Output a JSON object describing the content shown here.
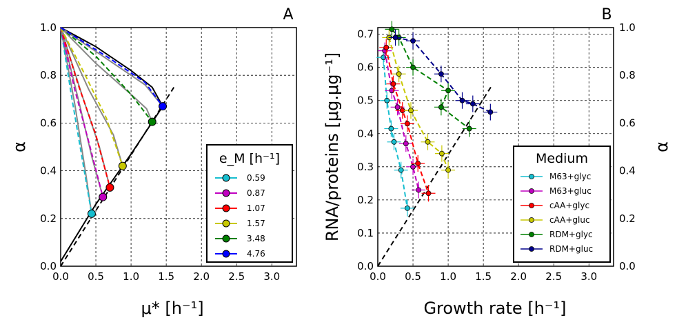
{
  "chart_data": [
    {
      "type": "line",
      "panel_label": "A",
      "xlabel": "μ* [h⁻¹]",
      "ylabel": "α",
      "xlim": [
        0,
        3.35
      ],
      "ylim": [
        0,
        1.0
      ],
      "xticks": [
        "0.0",
        "0.5",
        "1.0",
        "1.5",
        "2.0",
        "2.5",
        "3.0"
      ],
      "yticks": [
        "0.0",
        "0.2",
        "0.4",
        "0.6",
        "0.8",
        "1.0"
      ],
      "grid": true,
      "legend": {
        "title": "e_M [h⁻¹]",
        "placement": "bottom-right"
      },
      "series": [
        {
          "name": "0.59",
          "color": "#17becf",
          "point": [
            0.44,
            0.22
          ],
          "dashed": [
            [
              0,
              1.0
            ],
            [
              0.15,
              0.72
            ],
            [
              0.3,
              0.46
            ],
            [
              0.44,
              0.22
            ]
          ],
          "gray": [
            [
              0,
              1.0
            ],
            [
              0.2,
              0.68
            ],
            [
              0.35,
              0.4
            ],
            [
              0.44,
              0.22
            ]
          ]
        },
        {
          "name": "0.87",
          "color": "#c000c0",
          "point": [
            0.6,
            0.29
          ],
          "dashed": [
            [
              0,
              1.0
            ],
            [
              0.2,
              0.74
            ],
            [
              0.4,
              0.52
            ],
            [
              0.6,
              0.29
            ]
          ],
          "gray": [
            [
              0,
              1.0
            ],
            [
              0.25,
              0.7
            ],
            [
              0.45,
              0.45
            ],
            [
              0.6,
              0.29
            ]
          ]
        },
        {
          "name": "1.07",
          "color": "#ff0000",
          "point": [
            0.7,
            0.33
          ],
          "dashed": [
            [
              0,
              1.0
            ],
            [
              0.25,
              0.76
            ],
            [
              0.5,
              0.55
            ],
            [
              0.7,
              0.33
            ]
          ],
          "gray": [
            [
              0,
              1.0
            ],
            [
              0.3,
              0.72
            ],
            [
              0.55,
              0.5
            ],
            [
              0.7,
              0.33
            ]
          ]
        },
        {
          "name": "1.57",
          "color": "#c8c800",
          "point": [
            0.88,
            0.42
          ],
          "dashed": [
            [
              0,
              1.0
            ],
            [
              0.35,
              0.8
            ],
            [
              0.65,
              0.62
            ],
            [
              0.88,
              0.42
            ]
          ],
          "gray": [
            [
              0,
              1.0
            ],
            [
              0.4,
              0.74
            ],
            [
              0.75,
              0.55
            ],
            [
              0.88,
              0.42
            ]
          ]
        },
        {
          "name": "3.48",
          "color": "#008000",
          "point": [
            1.3,
            0.605
          ],
          "dashed": [
            [
              0,
              1.0
            ],
            [
              0.5,
              0.88
            ],
            [
              1.0,
              0.72
            ],
            [
              1.3,
              0.605
            ]
          ],
          "gray": [
            [
              0,
              1.0
            ],
            [
              0.5,
              0.85
            ],
            [
              1.0,
              0.72
            ],
            [
              1.22,
              0.66
            ],
            [
              1.3,
              0.605
            ]
          ]
        },
        {
          "name": "4.76",
          "color": "#0000ff",
          "point": [
            1.45,
            0.67
          ],
          "dashed": [
            [
              0,
              1.0
            ],
            [
              0.7,
              0.87
            ],
            [
              1.2,
              0.77
            ],
            [
              1.45,
              0.67
            ]
          ],
          "gray": [
            [
              0,
              1.0
            ],
            [
              0.7,
              0.86
            ],
            [
              1.2,
              0.76
            ],
            [
              1.45,
              0.67
            ]
          ]
        }
      ],
      "envelope": [
        [
          0,
          1.0
        ],
        [
          0.5,
          0.92
        ],
        [
          1.0,
          0.82
        ],
        [
          1.3,
          0.75
        ],
        [
          1.45,
          0.67
        ],
        [
          1.0,
          0.47
        ],
        [
          0.5,
          0.26
        ],
        [
          0.0,
          0.02
        ]
      ],
      "reference_line": [
        [
          0,
          0
        ],
        [
          1.62,
          0.755
        ]
      ]
    },
    {
      "type": "scatter",
      "panel_label": "B",
      "xlabel": "Growth rate [h⁻¹]",
      "ylabel": "RNA/proteins [μg.μg⁻¹]",
      "ylabel_right": "α",
      "xlim": [
        0,
        3.35
      ],
      "ylim": [
        0,
        0.72
      ],
      "xticks": [
        "0.0",
        "0.5",
        "1.0",
        "1.5",
        "2.0",
        "2.5",
        "3.0"
      ],
      "yticks": [
        "0.0",
        "0.1",
        "0.2",
        "0.3",
        "0.4",
        "0.5",
        "0.6",
        "0.7"
      ],
      "yticks_right": [
        "0.0",
        "0.2",
        "0.4",
        "0.6",
        "0.8",
        "1.0"
      ],
      "grid": true,
      "legend": {
        "title": "Medium",
        "placement": "bottom-right"
      },
      "series": [
        {
          "name": "M63+glyc",
          "color": "#17becf",
          "x": [
            0.08,
            0.13,
            0.19,
            0.23,
            0.33,
            0.42
          ],
          "y": [
            0.63,
            0.5,
            0.415,
            0.375,
            0.29,
            0.175
          ]
        },
        {
          "name": "M63+gluc",
          "color": "#c000c0",
          "x": [
            0.1,
            0.2,
            0.28,
            0.4,
            0.5,
            0.58
          ],
          "y": [
            0.65,
            0.53,
            0.48,
            0.37,
            0.3,
            0.23
          ]
        },
        {
          "name": "cAA+glyc",
          "color": "#ff0000",
          "x": [
            0.12,
            0.22,
            0.35,
            0.42,
            0.57,
            0.72
          ],
          "y": [
            0.66,
            0.55,
            0.47,
            0.43,
            0.31,
            0.22
          ]
        },
        {
          "name": "cAA+gluc",
          "color": "#c8c800",
          "x": [
            0.16,
            0.3,
            0.47,
            0.71,
            0.91,
            1.0
          ],
          "y": [
            0.69,
            0.58,
            0.47,
            0.375,
            0.34,
            0.29
          ]
        },
        {
          "name": "RDM+glyc",
          "color": "#008000",
          "x": [
            0.2,
            0.3,
            0.5,
            1.0,
            0.9,
            1.3
          ],
          "y": [
            0.715,
            0.69,
            0.6,
            0.53,
            0.48,
            0.415
          ]
        },
        {
          "name": "RDM+gluc",
          "color": "#00008b",
          "x": [
            0.25,
            0.5,
            0.9,
            1.2,
            1.35,
            1.6
          ],
          "y": [
            0.69,
            0.68,
            0.58,
            0.5,
            0.49,
            0.465
          ]
        }
      ],
      "reference_line": [
        [
          0,
          0
        ],
        [
          1.62,
          0.545
        ]
      ]
    }
  ]
}
